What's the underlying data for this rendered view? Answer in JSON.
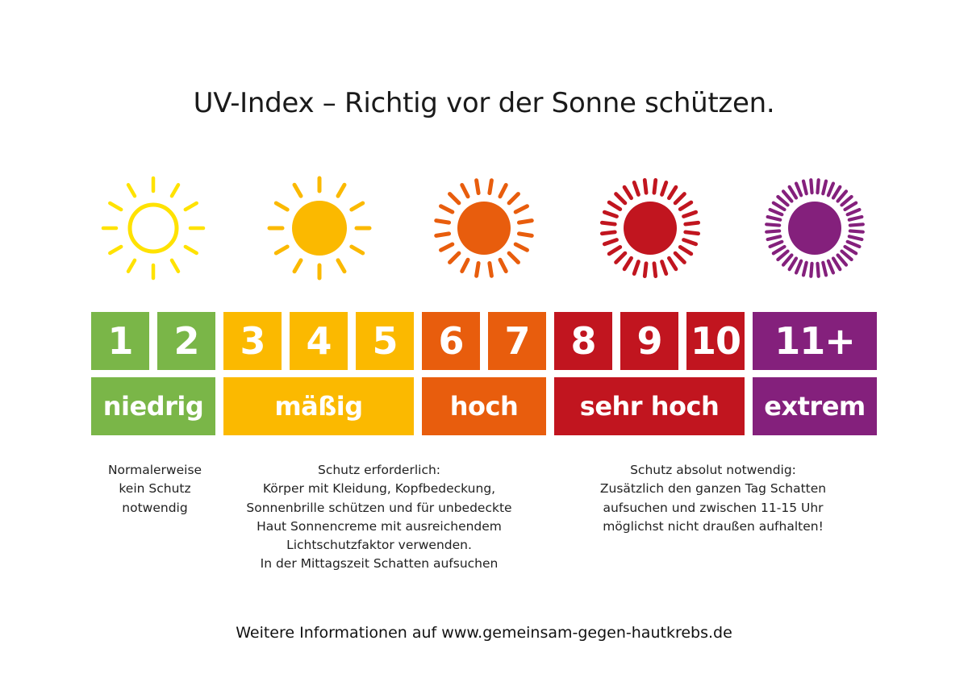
{
  "title": "UV-Index – Richtig vor der Sonne schützen.",
  "colors": {
    "green": "#7ab648",
    "yellow": "#fbb900",
    "orange": "#e85d0d",
    "red": "#c1151f",
    "purple": "#84207c",
    "sun_low": "#ffe200"
  },
  "suns": [
    {
      "icon": "sun-outline-icon",
      "level": "niedrig"
    },
    {
      "icon": "sun-filled-icon",
      "level": "mäßig"
    },
    {
      "icon": "sun-dense-rays-icon",
      "level": "hoch"
    },
    {
      "icon": "sun-denser-rays-icon",
      "level": "sehr hoch"
    },
    {
      "icon": "sun-densest-rays-icon",
      "level": "extrem"
    }
  ],
  "index_values": [
    "1",
    "2",
    "3",
    "4",
    "5",
    "6",
    "7",
    "8",
    "9",
    "10",
    "11+"
  ],
  "levels": [
    "niedrig",
    "mäßig",
    "hoch",
    "sehr hoch",
    "extrem"
  ],
  "descriptions": {
    "low": [
      "Normalerweise",
      "kein Schutz",
      "notwendig"
    ],
    "moderate": [
      "Schutz erforderlich:",
      "Körper mit Kleidung, Kopfbedeckung,",
      "Sonnenbrille schützen und für unbedeckte",
      "Haut Sonnencreme mit ausreichendem",
      "Lichtschutzfaktor verwenden.",
      "In der Mittagszeit Schatten aufsuchen"
    ],
    "very_high": [
      "Schutz absolut notwendig:",
      "Zusätzlich den ganzen Tag Schatten",
      "aufsuchen und zwischen 11-15 Uhr",
      "möglichst nicht draußen aufhalten!"
    ]
  },
  "footer": "Weitere Informationen auf www.gemeinsam-gegen-hautkrebs.de"
}
